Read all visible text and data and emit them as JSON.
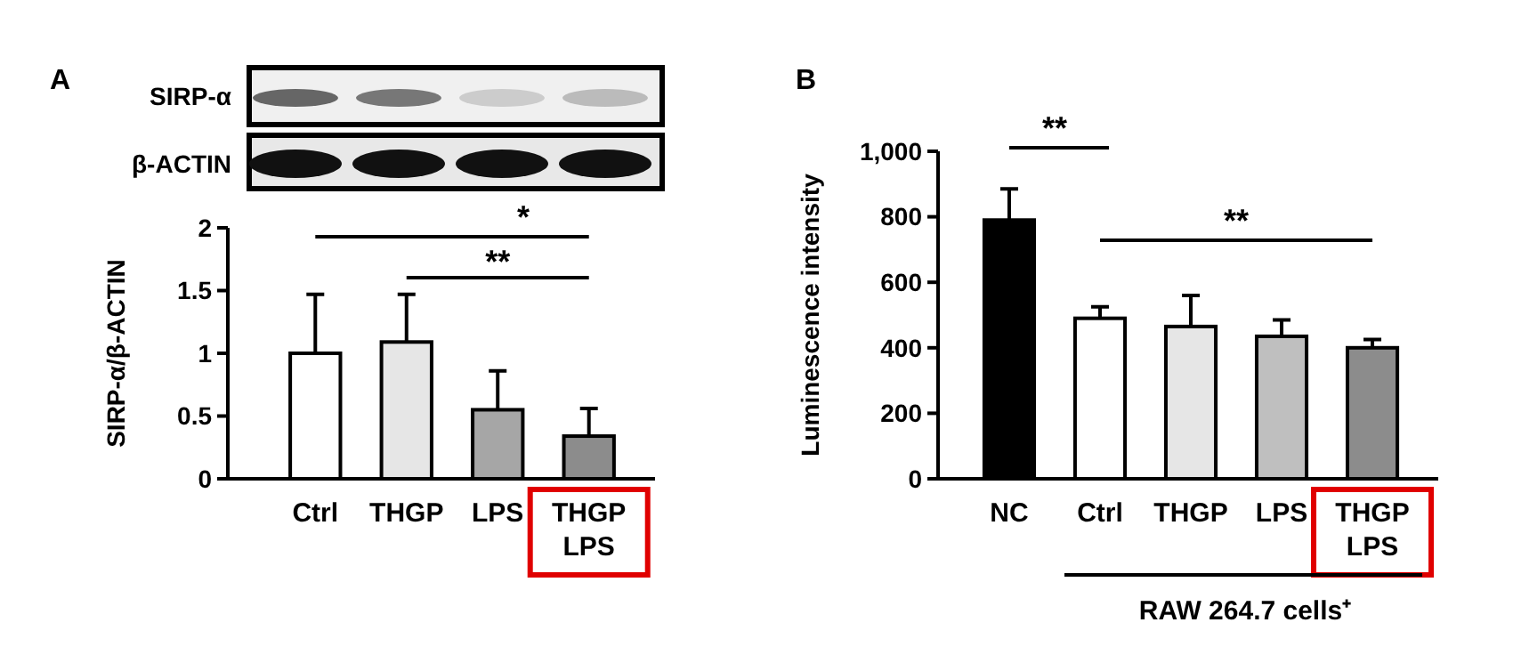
{
  "chart_data": [
    {
      "type": "bar",
      "title": "A",
      "ylabel": "SIRP-α/β-ACTIN",
      "categories": [
        "Ctrl",
        "THGP",
        "LPS",
        "THGP\nLPS"
      ],
      "values": [
        1.0,
        1.09,
        0.55,
        0.34
      ],
      "errors": [
        [
          1.0,
          1.47
        ],
        [
          1.09,
          1.47
        ],
        [
          0.55,
          0.86
        ],
        [
          0.34,
          0.56
        ]
      ],
      "colors": [
        "#ffffff",
        "#e6e6e6",
        "#a6a6a6",
        "#8c8c8c"
      ],
      "ylim": [
        0,
        2
      ],
      "yticks": [
        0,
        0.5,
        1,
        1.5,
        2
      ],
      "grid": false,
      "annotations": [
        "SIRP-α",
        "β-ACTIN",
        "*",
        "**"
      ]
    },
    {
      "type": "bar",
      "title": "B",
      "ylabel": "Luminescence intensity",
      "categories": [
        "NC",
        "Ctrl",
        "THGP",
        "LPS",
        "THGP\nLPS"
      ],
      "values": [
        790,
        490,
        465,
        435,
        400
      ],
      "errors": [
        [
          790,
          885
        ],
        [
          490,
          525
        ],
        [
          465,
          560
        ],
        [
          435,
          485
        ],
        [
          400,
          425
        ]
      ],
      "colors": [
        "#000000",
        "#ffffff",
        "#e6e6e6",
        "#bfbfbf",
        "#8c8c8c"
      ],
      "ylim": [
        0,
        1000
      ],
      "yticks": [
        0,
        200,
        400,
        600,
        800,
        {
          "value": 1000,
          "label": "1,000"
        }
      ],
      "grid": false,
      "annotations": [
        "**",
        "**",
        "RAW 264.7 cells⁺"
      ]
    }
  ]
}
